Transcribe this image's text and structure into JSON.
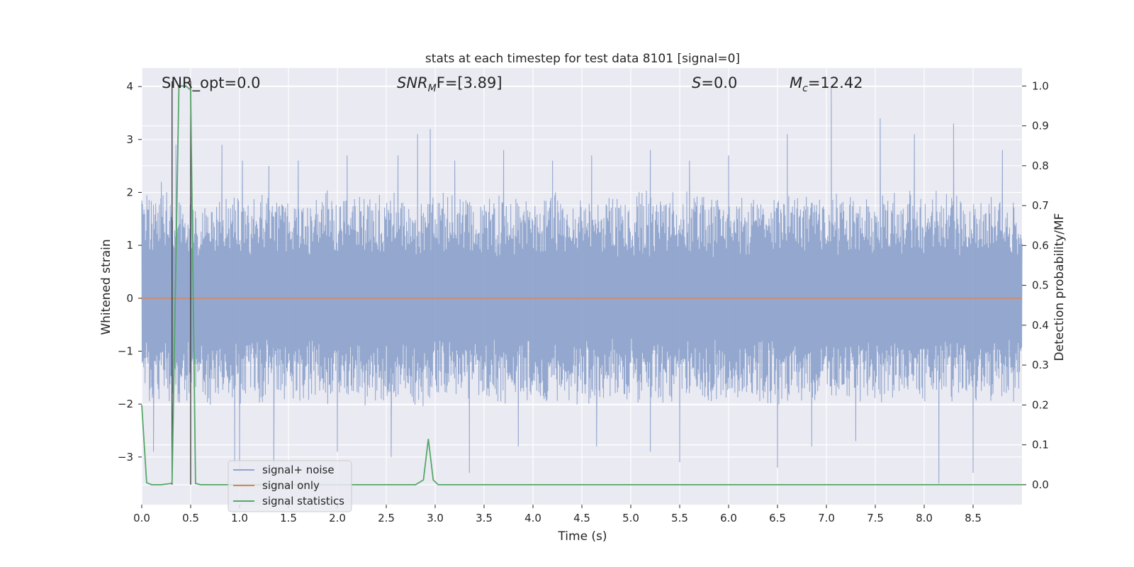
{
  "chart_data": {
    "type": "line",
    "title": "stats at each timestep for test data 8101 [signal=0]",
    "xlabel": "Time (s)",
    "ylabel": "Whitened strain",
    "ylabel_right": "Detection probability/MF",
    "xlim": [
      0.0,
      9.0
    ],
    "ylim": [
      -3.9,
      4.35
    ],
    "ylim_right": [
      -0.05,
      1.045
    ],
    "x_ticks": [
      0.0,
      0.5,
      1.0,
      1.5,
      2.0,
      2.5,
      3.0,
      3.5,
      4.0,
      4.5,
      5.0,
      5.5,
      6.0,
      6.5,
      7.0,
      7.5,
      8.0,
      8.5
    ],
    "x_tick_labels": [
      "0.0",
      "0.5",
      "1.0",
      "1.5",
      "2.0",
      "2.5",
      "3.0",
      "3.5",
      "4.0",
      "4.5",
      "5.0",
      "5.5",
      "6.0",
      "6.5",
      "7.0",
      "7.5",
      "8.0",
      "8.5"
    ],
    "y_ticks": [
      4,
      3,
      2,
      1,
      0,
      -1,
      -2,
      -3
    ],
    "y_tick_labels": [
      "4",
      "3",
      "2",
      "1",
      "0",
      "−1",
      "−2",
      "−3"
    ],
    "y2_ticks": [
      1.0,
      0.9,
      0.8,
      0.7,
      0.6,
      0.5,
      0.4,
      0.3,
      0.2,
      0.1,
      0.0
    ],
    "y2_tick_labels": [
      "1.0",
      "0.9",
      "0.8",
      "0.7",
      "0.6",
      "0.5",
      "0.4",
      "0.3",
      "0.2",
      "0.1",
      "0.0"
    ],
    "grid": true,
    "legend_position": "lower-left",
    "annotations": {
      "snr_opt": "SNR_opt=0.0",
      "snr_mf_main": "SNR",
      "snr_mf_sub": "M",
      "snr_mf_rest": "F=[3.89]",
      "s_main": "S",
      "s_rest": "=0.0",
      "mc_main": "M",
      "mc_sub": "c",
      "mc_rest": "=12.42"
    },
    "markers_x": [
      0.31,
      0.5
    ],
    "series": [
      {
        "name": "signal+ noise",
        "color": "#8fa4cc",
        "axis": "left",
        "envelope": "dense whitened noise between about -3.5 and +4.0",
        "peaks_x": [
          0.2,
          0.35,
          0.82,
          1.03,
          1.3,
          1.6,
          2.1,
          2.62,
          2.82,
          2.95,
          3.2,
          3.7,
          4.2,
          4.6,
          5.2,
          5.6,
          6.0,
          6.6,
          7.05,
          7.55,
          7.9,
          8.3,
          8.8
        ],
        "peaks_y": [
          2.2,
          2.9,
          2.9,
          2.6,
          2.5,
          2.6,
          2.7,
          2.7,
          3.1,
          3.2,
          2.6,
          2.8,
          2.6,
          2.7,
          2.8,
          2.6,
          2.7,
          3.1,
          4.0,
          3.4,
          3.1,
          3.3,
          2.8
        ],
        "troughs_x": [
          0.12,
          0.31,
          0.95,
          1.0,
          1.35,
          2.0,
          2.55,
          3.35,
          3.85,
          4.65,
          5.2,
          5.5,
          6.5,
          6.85,
          7.3,
          8.15,
          8.5
        ],
        "troughs_y": [
          -2.9,
          -2.4,
          -3.1,
          -3.3,
          -3.2,
          -2.9,
          -3.0,
          -3.3,
          -2.8,
          -2.8,
          -2.9,
          -3.1,
          -3.2,
          -2.8,
          -2.7,
          -3.5,
          -3.3
        ]
      },
      {
        "name": "signal only",
        "color": "#dd8452",
        "axis": "left",
        "x": [
          0.0,
          9.0
        ],
        "values": [
          0.0,
          0.0
        ]
      },
      {
        "name": "signal statistics",
        "color": "#55a868",
        "axis": "right",
        "x": [
          0.0,
          0.05,
          0.1,
          0.2,
          0.3,
          0.31,
          0.38,
          0.45,
          0.5,
          0.55,
          0.6,
          1.0,
          2.0,
          2.8,
          2.88,
          2.93,
          2.98,
          3.03,
          4.0,
          6.0,
          8.0,
          9.0
        ],
        "values": [
          0.2,
          0.005,
          0.0,
          0.0,
          0.003,
          0.005,
          1.0,
          1.0,
          0.99,
          0.003,
          0.0,
          0.0,
          0.0,
          0.0,
          0.012,
          0.115,
          0.012,
          0.0,
          0.0,
          0.0,
          0.0,
          0.0
        ]
      }
    ]
  }
}
